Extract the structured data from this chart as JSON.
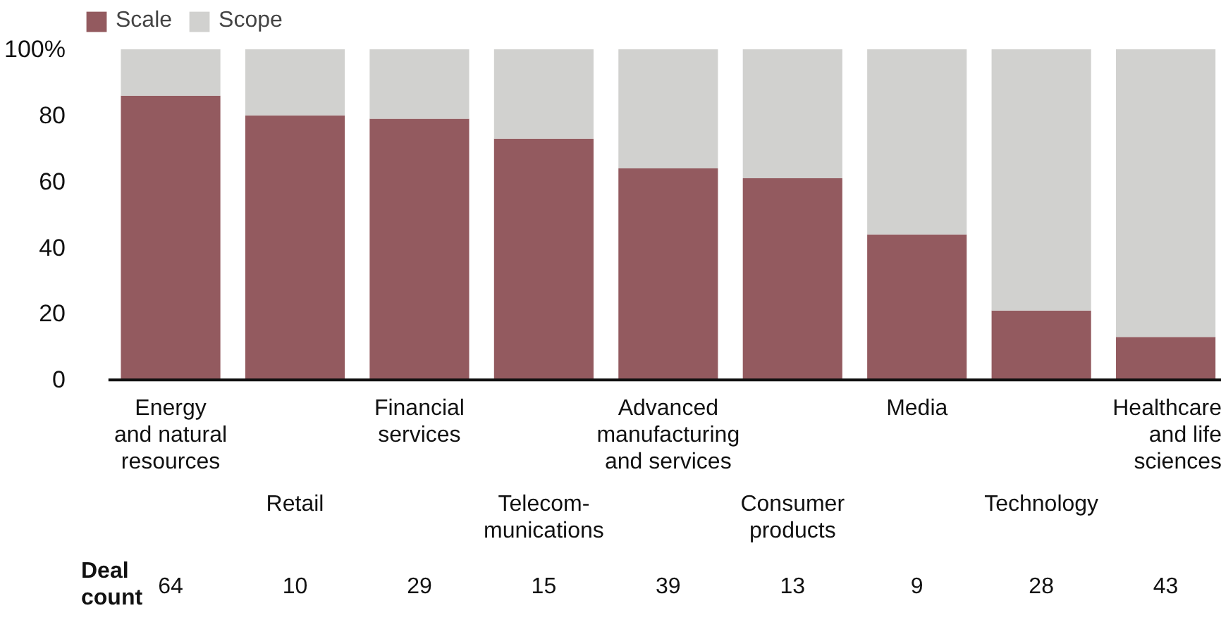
{
  "chart_data": {
    "type": "bar",
    "stacked": true,
    "categories": [
      "Energy\nand natural\nresources",
      "Retail",
      "Financial\nservices",
      "Telecom-\nmunications",
      "Advanced\nmanufacturing\nand services",
      "Consumer\nproducts",
      "Media",
      "Technology",
      "Healthcare\nand life\nsciences"
    ],
    "series": [
      {
        "name": "Scale",
        "color": "#935a5f",
        "values": [
          86,
          80,
          79,
          73,
          64,
          61,
          44,
          21,
          13
        ]
      },
      {
        "name": "Scope",
        "color": "#d1d1cf",
        "values": [
          14,
          20,
          21,
          27,
          36,
          39,
          56,
          79,
          87
        ]
      }
    ],
    "ylim": [
      0,
      100
    ],
    "yticks": [
      0,
      20,
      40,
      60,
      80,
      {
        "value": 100,
        "label": "100%"
      }
    ],
    "legend": "top left",
    "annotations": [
      "Deal\ncount",
      "64",
      "10",
      "29",
      "15",
      "39",
      "13",
      "9",
      "28",
      "43"
    ]
  }
}
